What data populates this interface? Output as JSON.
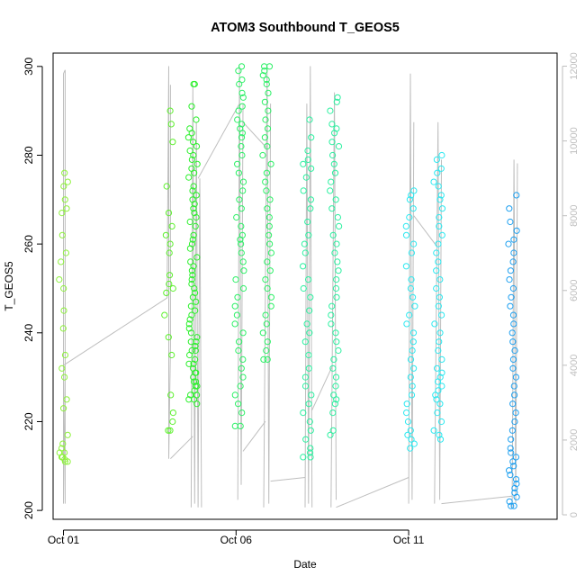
{
  "chart_data": {
    "type": "scatter",
    "title": "ATOM3 Southbound T_GEOS5",
    "xlabel": "Date",
    "ylabel": "T_GEOS5",
    "x_ticks": [
      {
        "label": "Oct 01",
        "day": 1
      },
      {
        "label": "Oct 06",
        "day": 6
      },
      {
        "label": "Oct 11",
        "day": 11
      }
    ],
    "xlim_days": [
      0.7,
      15.3
    ],
    "ylim": [
      198,
      303
    ],
    "y_ticks": [
      200,
      220,
      240,
      260,
      280,
      300
    ],
    "y2_label": "",
    "y2lim": [
      -120,
      12350
    ],
    "y2_ticks": [
      0,
      2000,
      4000,
      6000,
      8000,
      10000,
      12000
    ],
    "grid": false,
    "legend": "none",
    "colors": {
      "axis": "#000000",
      "y2_axis": "#bebebe",
      "altitude_line": "#bebebe",
      "point_colors": [
        "#8ef23c",
        "#5cf02c",
        "#2cf02c",
        "#2cf066",
        "#2cf0a0",
        "#2cf0d8",
        "#2ce8f0",
        "#2cc0f0",
        "#1ea0f0"
      ]
    },
    "series": [
      {
        "day": 1.0,
        "color_index": 0,
        "values": [
          276,
          274,
          273,
          270,
          268,
          267,
          262,
          258,
          256,
          252,
          250,
          245,
          241,
          235,
          232,
          230,
          225,
          223,
          217,
          215,
          213,
          212,
          211.5,
          211,
          212,
          213,
          214,
          211,
          212
        ]
      },
      {
        "day": 4.05,
        "color_index": 1,
        "values": [
          290,
          287,
          283,
          273,
          267,
          264,
          262,
          260,
          258,
          253,
          251,
          250,
          249,
          244,
          239,
          235,
          226,
          222,
          220,
          218,
          218
        ]
      },
      {
        "day": 4.75,
        "color_index": 2,
        "values": [
          296,
          296,
          291,
          288,
          286,
          285,
          284,
          283,
          282,
          281,
          280,
          279,
          278,
          277,
          276,
          275,
          273,
          272,
          271,
          270,
          269,
          268,
          267,
          266,
          265,
          264,
          262,
          261,
          260,
          259,
          257,
          256,
          255,
          254,
          253,
          252,
          251,
          250,
          249,
          248,
          247,
          246,
          245,
          244,
          243,
          242,
          241,
          240,
          239,
          238,
          237,
          236,
          235,
          234,
          233,
          232,
          231,
          230,
          229,
          228,
          227,
          226,
          225,
          224,
          225,
          226,
          228,
          229,
          231,
          233,
          236,
          238
        ]
      },
      {
        "day": 6.1,
        "color_index": 3,
        "values": [
          300,
          299,
          297,
          296,
          294,
          293,
          291,
          290,
          288,
          287,
          286,
          285,
          284,
          282,
          280,
          278,
          276,
          274,
          272,
          270,
          268,
          266,
          264,
          262,
          261,
          260,
          258,
          256,
          254,
          252,
          250,
          248,
          246,
          244,
          242,
          240,
          238,
          236,
          234,
          232,
          230,
          228,
          226,
          224,
          222,
          219,
          219
        ]
      },
      {
        "day": 6.9,
        "color_index": 3,
        "values": [
          300,
          300,
          299,
          298,
          297,
          296,
          294,
          292,
          290,
          288,
          286,
          284,
          282,
          280,
          278,
          276,
          274,
          272,
          270,
          268,
          266,
          264,
          262,
          260,
          258,
          256,
          254,
          252,
          250,
          248,
          246,
          244,
          242,
          240,
          238,
          236,
          234,
          234
        ]
      },
      {
        "day": 8.05,
        "color_index": 4,
        "values": [
          288,
          284,
          281,
          279,
          278,
          277,
          275,
          272,
          270,
          268,
          265,
          262,
          260,
          258,
          255,
          252,
          250,
          248,
          245,
          242,
          240,
          238,
          235,
          232,
          230,
          228,
          226,
          224,
          222,
          220,
          218,
          216,
          214,
          213,
          212,
          212
        ]
      },
      {
        "day": 8.85,
        "color_index": 4,
        "values": [
          293,
          292,
          290,
          287,
          286,
          285,
          283,
          282,
          280,
          278,
          276,
          274,
          272,
          270,
          268,
          266,
          264,
          262,
          260,
          258,
          256,
          254,
          252,
          250,
          248,
          246,
          244,
          242,
          240,
          238,
          236,
          234,
          232,
          230,
          228,
          226,
          225,
          224,
          222,
          218,
          217
        ]
      },
      {
        "day": 11.05,
        "color_index": 6,
        "values": [
          272,
          271,
          270,
          268,
          266,
          264,
          262,
          260,
          258,
          255,
          252,
          250,
          248,
          246,
          244,
          242,
          240,
          238,
          236,
          234,
          232,
          230,
          228,
          226,
          224,
          222,
          220,
          218,
          217,
          216,
          215,
          214
        ]
      },
      {
        "day": 11.85,
        "color_index": 6,
        "values": [
          280,
          279,
          277,
          276,
          274,
          273,
          271,
          270,
          268,
          266,
          264,
          262,
          260,
          258,
          256,
          254,
          252,
          250,
          248,
          246,
          244,
          242,
          240,
          238,
          236,
          234,
          232,
          231,
          230,
          229,
          228,
          227,
          226,
          225,
          224,
          222,
          220,
          218,
          217,
          216
        ]
      },
      {
        "day": 14.0,
        "color_index": 8,
        "values": [
          271,
          268,
          265,
          263,
          261,
          260,
          258,
          256,
          254,
          252,
          250,
          248,
          246,
          244,
          242,
          240,
          238,
          236,
          234,
          232,
          230,
          228,
          226,
          224,
          222,
          220,
          218,
          216,
          214,
          213,
          212,
          211,
          210,
          209,
          208,
          207,
          206,
          205,
          204,
          203,
          202,
          201,
          201
        ]
      }
    ],
    "altitude_segments": [
      {
        "x": [
          1.0,
          1.0,
          1.05,
          1.05,
          1.0
        ],
        "y": [
          300,
          11800,
          11900,
          300,
          4000
        ]
      },
      {
        "x": [
          1.0,
          4.0
        ],
        "y": [
          4000,
          5800
        ]
      },
      {
        "x": [
          4.0,
          4.05,
          4.05,
          4.1,
          4.1
        ],
        "y": [
          5800,
          12000,
          1500,
          4500,
          11500
        ]
      },
      {
        "x": [
          4.1,
          4.75
        ],
        "y": [
          1500,
          2100
        ]
      },
      {
        "x": [
          4.7,
          4.75,
          4.8,
          4.85,
          4.9,
          4.95,
          5.0
        ],
        "y": [
          200,
          11500,
          300,
          10500,
          200,
          9000,
          200
        ]
      },
      {
        "x": [
          4.9,
          6.1
        ],
        "y": [
          9000,
          11000
        ]
      },
      {
        "x": [
          6.05,
          6.1,
          6.15,
          6.2
        ],
        "y": [
          400,
          12000,
          800,
          11000
        ]
      },
      {
        "x": [
          6.2,
          6.85
        ],
        "y": [
          1700,
          2500
        ]
      },
      {
        "x": [
          6.8,
          6.9,
          6.95,
          7.0
        ],
        "y": [
          200,
          12000,
          300,
          11000
        ]
      },
      {
        "x": [
          6.2,
          6.9
        ],
        "y": [
          10500,
          9800
        ]
      },
      {
        "x": [
          7.0,
          8.0
        ],
        "y": [
          900,
          1000
        ]
      },
      {
        "x": [
          8.0,
          8.05,
          8.1,
          8.15,
          8.2
        ],
        "y": [
          200,
          11000,
          300,
          12000,
          200
        ]
      },
      {
        "x": [
          8.2,
          8.8
        ],
        "y": [
          2800,
          4000
        ]
      },
      {
        "x": [
          8.75,
          8.85,
          8.9
        ],
        "y": [
          200,
          11300,
          400
        ]
      },
      {
        "x": [
          8.9,
          11.0
        ],
        "y": [
          200,
          1000
        ]
      },
      {
        "x": [
          11.0,
          11.05,
          11.1,
          11.15
        ],
        "y": [
          300,
          11800,
          400,
          10500
        ]
      },
      {
        "x": [
          11.15,
          11.8
        ],
        "y": [
          8000,
          7200
        ]
      },
      {
        "x": [
          11.75,
          11.85,
          11.9,
          11.95
        ],
        "y": [
          300,
          10500,
          400,
          9500
        ]
      },
      {
        "x": [
          11.95,
          14.0
        ],
        "y": [
          300,
          500
        ]
      },
      {
        "x": [
          14.0,
          14.05,
          14.1,
          14.15
        ],
        "y": [
          200,
          9500,
          300,
          9400
        ]
      }
    ]
  }
}
